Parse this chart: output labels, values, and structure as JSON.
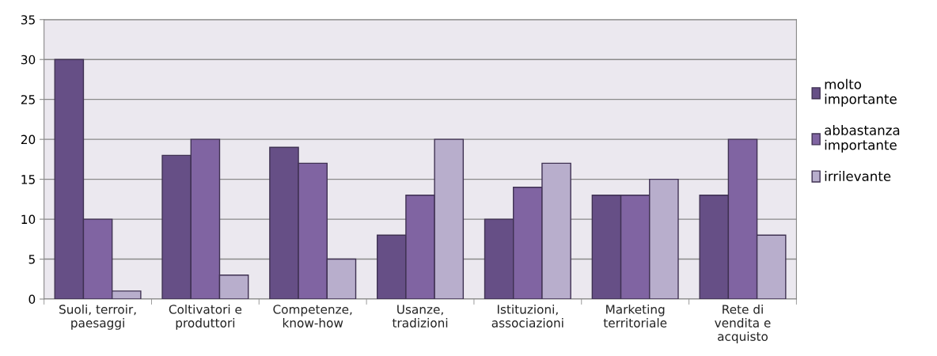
{
  "chart_data": {
    "type": "bar",
    "categories": [
      "Suoli, terroir,\npaesaggi",
      "Coltivatori e\nproduttori",
      "Competenze,\nknow-how",
      "Usanze,\ntradizioni",
      "Istituzioni,\nassociazioni",
      "Marketing\nterritoriale",
      "Rete di\nvendita e\nacquisto"
    ],
    "series": [
      {
        "name": "molto\nimportante",
        "color": "#664f86",
        "values": [
          30,
          18,
          19,
          8,
          10,
          13,
          13
        ]
      },
      {
        "name": "abbastanza\nimportante",
        "color": "#8064a2",
        "values": [
          10,
          20,
          17,
          13,
          14,
          13,
          20
        ]
      },
      {
        "name": "irrilevante",
        "color": "#b8aecc",
        "values": [
          1,
          3,
          5,
          20,
          17,
          15,
          8
        ]
      }
    ],
    "ylim": [
      0,
      35
    ],
    "yticks": [
      0,
      5,
      10,
      15,
      20,
      25,
      30,
      35
    ],
    "grid": "y",
    "legend": "right"
  }
}
